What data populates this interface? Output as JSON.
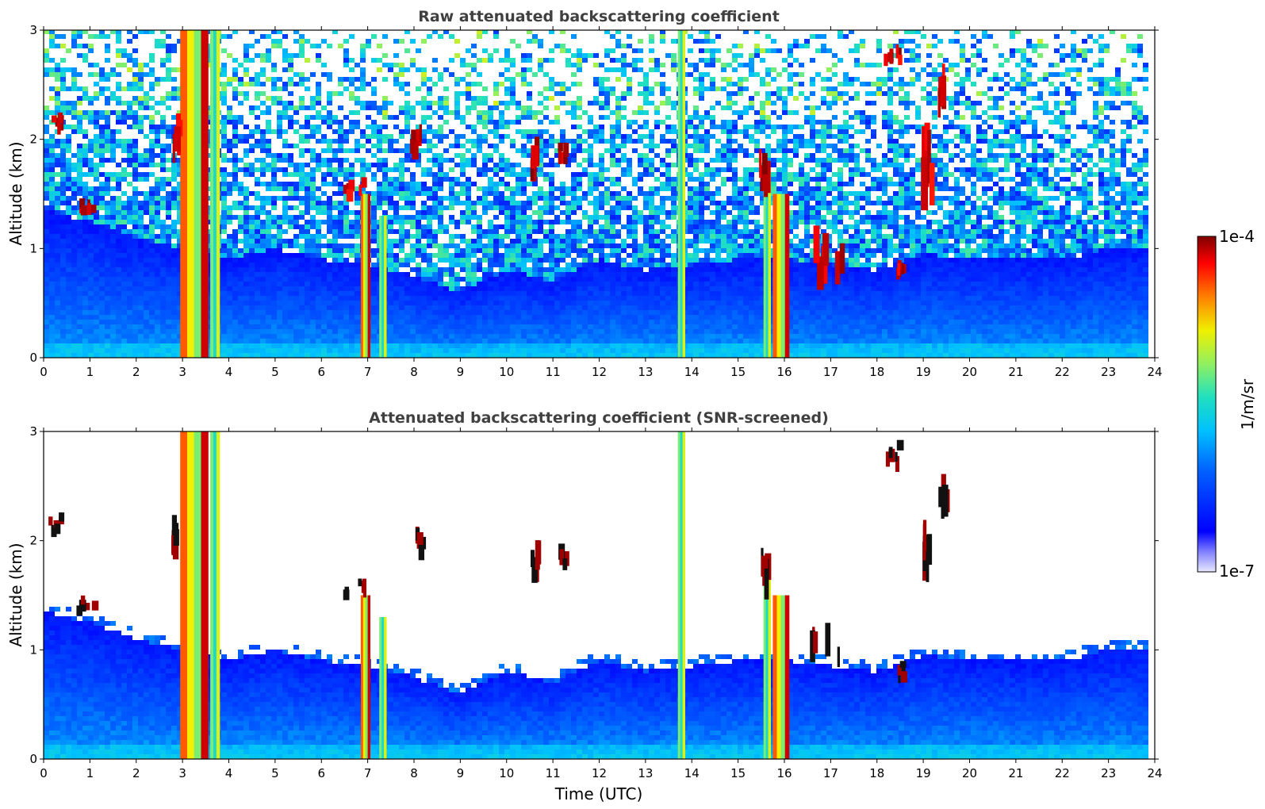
{
  "chart_data": [
    {
      "type": "heatmap",
      "title": "Raw attenuated backscattering coefficient",
      "xlabel": "",
      "ylabel": "Altitude (km)",
      "xlim": [
        0,
        24
      ],
      "ylim": [
        0,
        3
      ],
      "x_ticks": [
        "0",
        "1",
        "2",
        "3",
        "4",
        "5",
        "6",
        "7",
        "8",
        "9",
        "10",
        "11",
        "12",
        "13",
        "14",
        "15",
        "16",
        "17",
        "18",
        "19",
        "20",
        "21",
        "22",
        "23",
        "24"
      ],
      "y_ticks": [
        "0",
        "1",
        "2",
        "3"
      ],
      "data_end_hour": 23.8,
      "boundary_layer_km": [
        [
          0,
          1.35
        ],
        [
          1,
          1.25
        ],
        [
          2,
          1.1
        ],
        [
          3,
          1.0
        ],
        [
          4,
          0.9
        ],
        [
          5,
          1.0
        ],
        [
          6,
          0.9
        ],
        [
          7,
          0.85
        ],
        [
          8,
          0.75
        ],
        [
          9,
          0.6
        ],
        [
          10,
          0.8
        ],
        [
          11,
          0.7
        ],
        [
          12,
          0.9
        ],
        [
          13,
          0.8
        ],
        [
          14,
          0.85
        ],
        [
          15,
          0.9
        ],
        [
          16,
          0.9
        ],
        [
          17,
          0.85
        ],
        [
          18,
          0.8
        ],
        [
          19,
          0.95
        ],
        [
          20,
          0.9
        ],
        [
          21,
          0.9
        ],
        [
          22,
          0.9
        ],
        [
          23,
          1.0
        ],
        [
          23.8,
          1.0
        ]
      ],
      "precipitation_shafts": [
        {
          "t0": 2.95,
          "t1": 3.55,
          "top_km": 3.0,
          "level": "high"
        },
        {
          "t0": 3.6,
          "t1": 3.8,
          "top_km": 3.0,
          "level": "medium"
        },
        {
          "t0": 6.85,
          "t1": 7.05,
          "top_km": 1.5,
          "level": "high"
        },
        {
          "t0": 7.25,
          "t1": 7.4,
          "top_km": 1.3,
          "level": "medium"
        },
        {
          "t0": 13.7,
          "t1": 13.85,
          "top_km": 3.0,
          "level": "medium"
        },
        {
          "t0": 15.55,
          "t1": 15.7,
          "top_km": 1.7,
          "level": "medium"
        },
        {
          "t0": 15.75,
          "t1": 16.1,
          "top_km": 1.5,
          "level": "high"
        }
      ],
      "cloud_patches": [
        {
          "t": 0.1,
          "z": 2.2,
          "w": 0.3,
          "h": 0.12
        },
        {
          "t": 0.7,
          "z": 1.45,
          "w": 0.35,
          "h": 0.12
        },
        {
          "t": 2.75,
          "z": 2.1,
          "w": 0.15,
          "h": 0.3
        },
        {
          "t": 6.45,
          "z": 1.6,
          "w": 0.45,
          "h": 0.12
        },
        {
          "t": 7.9,
          "z": 2.05,
          "w": 0.35,
          "h": 0.2
        },
        {
          "t": 10.5,
          "z": 1.9,
          "w": 0.15,
          "h": 0.3
        },
        {
          "t": 11.1,
          "z": 1.9,
          "w": 0.15,
          "h": 0.15
        },
        {
          "t": 15.45,
          "z": 1.8,
          "w": 0.15,
          "h": 0.3
        },
        {
          "t": 16.5,
          "z": 1.1,
          "w": 0.7,
          "h": 0.35
        },
        {
          "t": 18.1,
          "z": 2.85,
          "w": 0.4,
          "h": 0.15
        },
        {
          "t": 18.4,
          "z": 0.85,
          "w": 0.15,
          "h": 0.12
        },
        {
          "t": 18.95,
          "z": 2.0,
          "w": 0.2,
          "h": 0.5
        },
        {
          "t": 19.3,
          "z": 2.55,
          "w": 0.15,
          "h": 0.3
        }
      ]
    },
    {
      "type": "heatmap",
      "title": "Attenuated backscattering coefficient (SNR-screened)",
      "xlabel": "Time (UTC)",
      "ylabel": "Altitude (km)",
      "xlim": [
        0,
        24
      ],
      "ylim": [
        0,
        3
      ],
      "x_ticks": [
        "0",
        "1",
        "2",
        "3",
        "4",
        "5",
        "6",
        "7",
        "8",
        "9",
        "10",
        "11",
        "12",
        "13",
        "14",
        "15",
        "16",
        "17",
        "18",
        "19",
        "20",
        "21",
        "22",
        "23",
        "24"
      ],
      "y_ticks": [
        "0",
        "1",
        "2",
        "3"
      ],
      "data_end_hour": 23.8
    }
  ],
  "colorbar": {
    "label": "1/m/sr",
    "max_label": "1e-4",
    "min_label": "1e-7",
    "min": 1e-07,
    "max": 0.0001,
    "scale": "log",
    "colormap": "jet"
  },
  "colors": {
    "clear": "#ffffff",
    "low": "#1a2bff",
    "mid": "#15c8e8",
    "high": "#e8d020",
    "max": "#8b0000",
    "title": "#404040"
  }
}
